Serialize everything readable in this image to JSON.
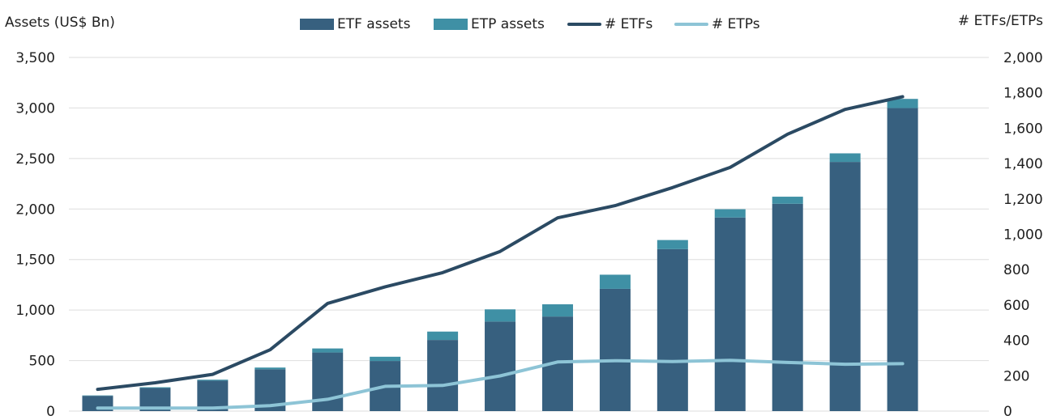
{
  "chart_data": {
    "type": "bar",
    "stacked": true,
    "categories": [
      "",
      "",
      "",
      "",
      "",
      "",
      "",
      "",
      "",
      "",
      "",
      "",
      "",
      "",
      "",
      ""
    ],
    "ylabel": "Assets (US$ Bn)",
    "ylim": [
      0,
      3500
    ],
    "yticks": [
      "0",
      "500",
      "1,000",
      "1,500",
      "2,000",
      "2,500",
      "3,000",
      "3,500"
    ],
    "y2label": "# ETFs/ETPs",
    "y2lim": [
      0,
      2000
    ],
    "y2ticks": [
      "0",
      "200",
      "400",
      "600",
      "800",
      "1,000",
      "1,200",
      "1,400",
      "1,600",
      "1,800",
      "2,000"
    ],
    "grid": true,
    "legend_position": "top-center",
    "series": [
      {
        "name": "ETF assets",
        "type": "bar",
        "axis": "left",
        "color": "#37607f",
        "values": [
          151,
          228,
          301,
          414,
          580,
          496,
          704,
          886,
          936,
          1210,
          1603,
          1916,
          2052,
          2466,
          2999,
          0
        ]
      },
      {
        "name": "ETP assets",
        "type": "bar",
        "axis": "left",
        "color": "#3f90a5",
        "values": [
          4,
          8,
          10,
          17,
          40,
          42,
          83,
          121,
          121,
          140,
          90,
          82,
          70,
          85,
          91,
          0
        ]
      },
      {
        "name": "# ETFs",
        "type": "line",
        "axis": "right",
        "color": "#2b4a63",
        "values": [
          123,
          160,
          208,
          347,
          609,
          703,
          783,
          903,
          1093,
          1162,
          1264,
          1378,
          1566,
          1706,
          1778,
          null
        ]
      },
      {
        "name": "# ETPs",
        "type": "line",
        "axis": "right",
        "color": "#8dc4d6",
        "values": [
          17,
          17,
          17,
          31,
          67,
          140,
          145,
          199,
          278,
          285,
          280,
          287,
          275,
          265,
          268,
          null
        ]
      }
    ]
  }
}
